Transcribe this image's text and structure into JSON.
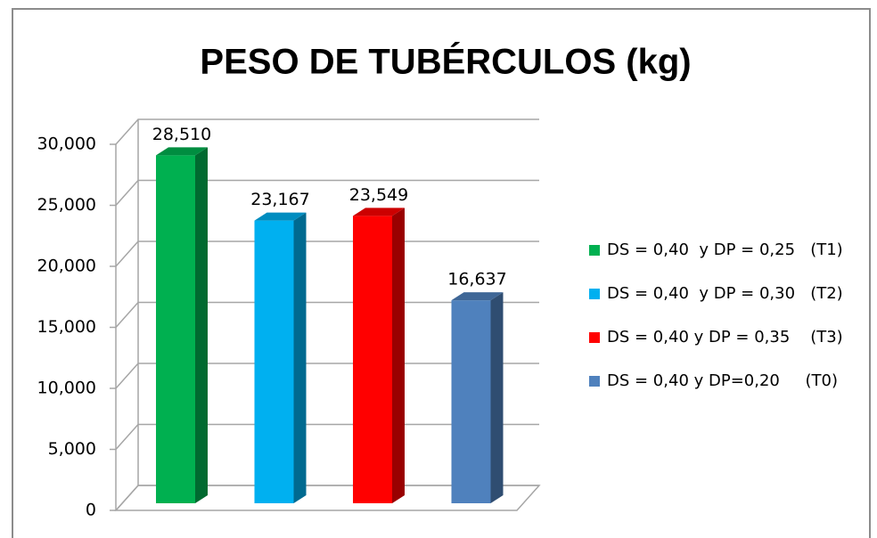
{
  "chart_data": {
    "type": "bar3d",
    "title": "PESO DE TUBÉRCULOS (kg)",
    "categories": [
      null
    ],
    "series": [
      {
        "name": "DS = 0,40  y DP = 0,25   (T1)",
        "color": "#00b050",
        "values": [
          28.51
        ],
        "value_labels": [
          "28,510"
        ]
      },
      {
        "name": "DS = 0,40  y DP = 0,30   (T2)",
        "color": "#00b0f0",
        "values": [
          23.167
        ],
        "value_labels": [
          "23,167"
        ]
      },
      {
        "name": "DS = 0,40 y DP = 0,35    (T3)",
        "color": "#ff0000",
        "values": [
          23.549
        ],
        "value_labels": [
          "23,549"
        ]
      },
      {
        "name": "DS = 0,40 y DP=0,20     (T0)",
        "color": "#4f81bd",
        "values": [
          16.637
        ],
        "value_labels": [
          "16,637"
        ]
      }
    ],
    "ylim": [
      0,
      30
    ],
    "yticks": [
      0,
      {
        "value": 5,
        "label": "5,000"
      },
      {
        "value": 10,
        "label": "10,000"
      },
      {
        "value": 15,
        "label": "15,000"
      },
      {
        "value": 20,
        "label": "20,000"
      },
      {
        "value": 25,
        "label": "25,000"
      },
      {
        "value": 30,
        "label": "30,000"
      }
    ],
    "grid": true,
    "legend": "right"
  }
}
